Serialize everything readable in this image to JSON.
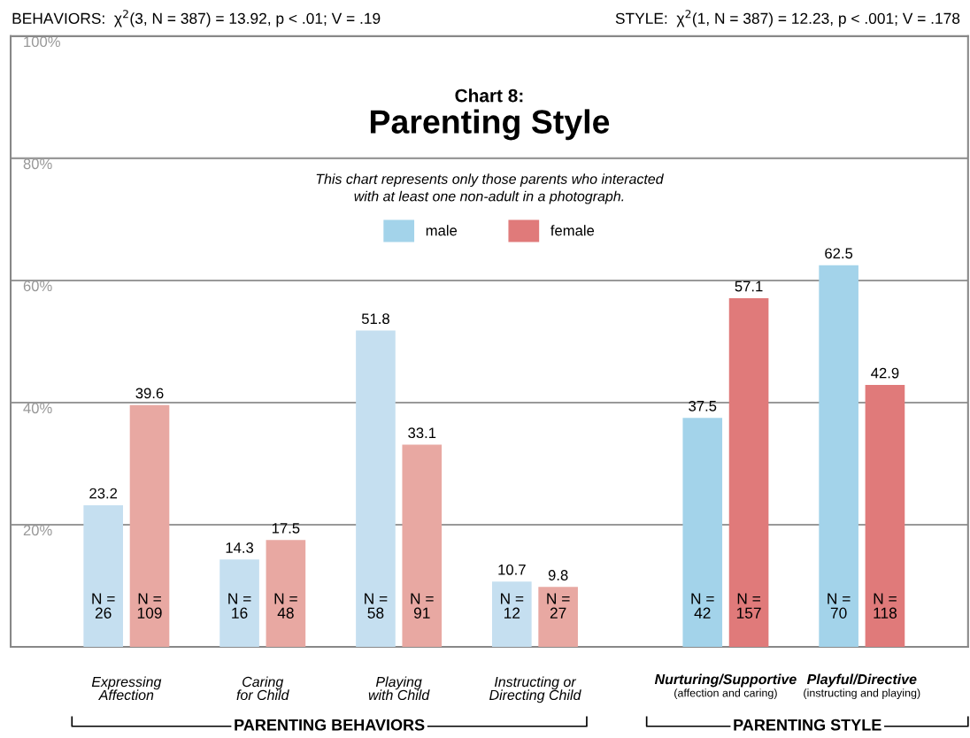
{
  "chart_data": {
    "type": "bar",
    "title": "Chart 8:\nParenting Style",
    "subtitle": "This chart represents only those parents who interacted\nwith at least one non-adult in a photograph.",
    "categories": [
      "Expressing\nAffection",
      "Caring\nfor Child",
      "Playing\nwith Child",
      "Instructing or\nDirecting Child",
      "Nurturing/Supportive\n(affection and caring)",
      "Playful/Directive\n(instructing and playing)"
    ],
    "series": [
      {
        "name": "male",
        "color": "#a3d3ea",
        "colors": [
          "#c5dff0",
          "#c5dff0",
          "#c5dff0",
          "#c5dff0",
          "#a3d3ea",
          "#a3d3ea"
        ],
        "values": [
          23.2,
          14.3,
          51.8,
          10.7,
          37.5,
          62.5
        ]
      },
      {
        "name": "female",
        "color": "#e07a7a",
        "colors": [
          "#e8a8a2",
          "#e8a8a2",
          "#e8a8a2",
          "#e8a8a2",
          "#e07a7a",
          "#e07a7a"
        ],
        "values": [
          39.6,
          17.5,
          33.1,
          9.8,
          57.1,
          42.9
        ]
      }
    ],
    "ylim": [
      0,
      100
    ],
    "yticks": [
      {
        "value": 20,
        "label": "20%"
      },
      {
        "value": 40,
        "label": "40%"
      },
      {
        "value": 60,
        "label": "60%"
      },
      {
        "value": 80,
        "label": "80%"
      },
      {
        "value": 100,
        "label": "100%"
      }
    ],
    "grid": "y",
    "legend": "top",
    "data_labels": true,
    "annotations": [
      "BEHAVIORS:  χ$^{2}$(3, N = 387) = 13.92, p < .01; V = .19",
      "STYLE:  χ$^{2}$(1, N = 387) = 12.23, p < .001; V = .178",
      "N =\n26",
      "N =\n109",
      "N =\n16",
      "N =\n48",
      "N =\n58",
      "N =\n91",
      "N =\n12",
      "N =\n27",
      "N =\n42",
      "N =\n157",
      "N =\n70",
      "N =\n118",
      "PARENTING BEHAVIORS",
      "PARENTING STYLE"
    ]
  }
}
